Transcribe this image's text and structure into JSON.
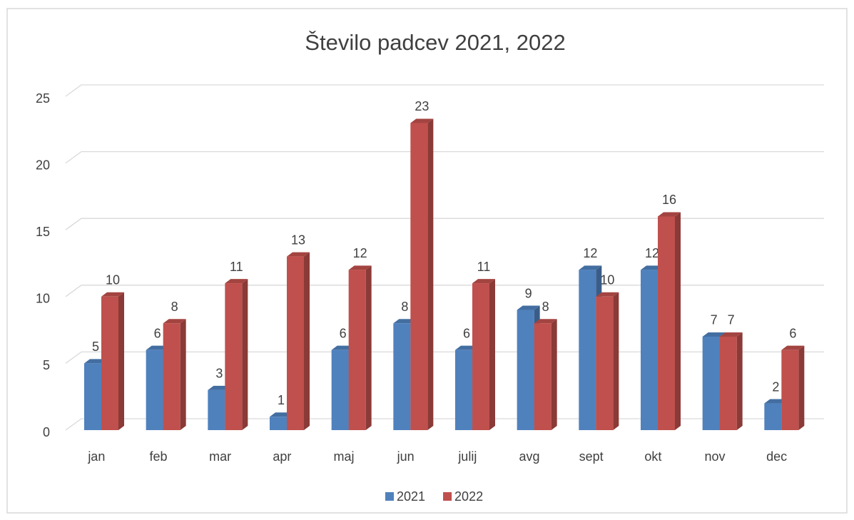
{
  "chart_data": {
    "type": "bar3d",
    "title": "Število padcev 2021, 2022",
    "categories": [
      "jan",
      "feb",
      "mar",
      "apr",
      "maj",
      "jun",
      "julij",
      "avg",
      "sept",
      "okt",
      "nov",
      "dec"
    ],
    "series": [
      {
        "name": "2021",
        "color": "#4f81bd",
        "values": [
          5,
          6,
          3,
          1,
          6,
          8,
          6,
          9,
          12,
          12,
          7,
          2
        ]
      },
      {
        "name": "2022",
        "color": "#c0504d",
        "values": [
          10,
          8,
          11,
          13,
          12,
          23,
          11,
          8,
          10,
          16,
          7,
          6
        ]
      }
    ],
    "ylim": [
      0,
      25
    ],
    "yticks": [
      0,
      5,
      10,
      15,
      20,
      25
    ],
    "grid": true,
    "legend": "bottom"
  }
}
